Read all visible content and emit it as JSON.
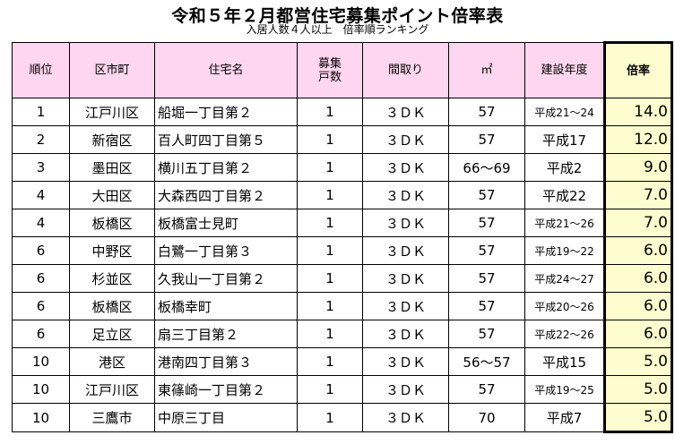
{
  "title": "令和５年２月都営住宅募集ポイント倍率表",
  "subtitle": "入居人数４人以上　倍率順ランキング",
  "headers": {
    "rank": "順位",
    "ward": "区市町",
    "name": "住宅名",
    "units_1": "募集",
    "units_2": "戸数",
    "layout": "間取り",
    "area": "㎡",
    "year": "建設年度",
    "rate": "倍率"
  },
  "rows": [
    {
      "rank": "1",
      "ward": "江戸川区",
      "name": "船堀一丁目第２",
      "units": "1",
      "layout": "３ＤＫ",
      "area": "57",
      "year": "平成21～24",
      "rate": "14.0"
    },
    {
      "rank": "2",
      "ward": "新宿区",
      "name": "百人町四丁目第５",
      "units": "1",
      "layout": "３ＤＫ",
      "area": "57",
      "year": "平成17",
      "rate": "12.0"
    },
    {
      "rank": "3",
      "ward": "墨田区",
      "name": "横川五丁目第２",
      "units": "1",
      "layout": "３ＤＫ",
      "area": "66～69",
      "year": "平成2",
      "rate": "9.0"
    },
    {
      "rank": "4",
      "ward": "大田区",
      "name": "大森西四丁目第２",
      "units": "1",
      "layout": "３ＤＫ",
      "area": "57",
      "year": "平成22",
      "rate": "7.0"
    },
    {
      "rank": "4",
      "ward": "板橋区",
      "name": "板橋富士見町",
      "units": "1",
      "layout": "３ＤＫ",
      "area": "57",
      "year": "平成21～26",
      "rate": "7.0"
    },
    {
      "rank": "6",
      "ward": "中野区",
      "name": "白鷺一丁目第３",
      "units": "1",
      "layout": "３ＤＫ",
      "area": "57",
      "year": "平成19～22",
      "rate": "6.0"
    },
    {
      "rank": "6",
      "ward": "杉並区",
      "name": "久我山一丁目第２",
      "units": "1",
      "layout": "３ＤＫ",
      "area": "57",
      "year": "平成24～27",
      "rate": "6.0"
    },
    {
      "rank": "6",
      "ward": "板橋区",
      "name": "板橋幸町",
      "units": "1",
      "layout": "３ＤＫ",
      "area": "57",
      "year": "平成20～26",
      "rate": "6.0"
    },
    {
      "rank": "6",
      "ward": "足立区",
      "name": "扇三丁目第２",
      "units": "1",
      "layout": "３ＤＫ",
      "area": "57",
      "year": "平成22～26",
      "rate": "6.0"
    },
    {
      "rank": "10",
      "ward": "港区",
      "name": "港南四丁目第３",
      "units": "1",
      "layout": "３ＤＫ",
      "area": "56～57",
      "year": "平成15",
      "rate": "5.0"
    },
    {
      "rank": "10",
      "ward": "江戸川区",
      "name": "東篠崎一丁目第２",
      "units": "1",
      "layout": "３ＤＫ",
      "area": "57",
      "year": "平成19～25",
      "rate": "5.0"
    },
    {
      "rank": "10",
      "ward": "三鷹市",
      "name": "中原三丁目",
      "units": "1",
      "layout": "３ＤＫ",
      "area": "70",
      "year": "平成7",
      "rate": "5.0"
    }
  ],
  "colors": {
    "header_bg": "#ffd6ef",
    "rate_bg": "#fffdcf"
  }
}
